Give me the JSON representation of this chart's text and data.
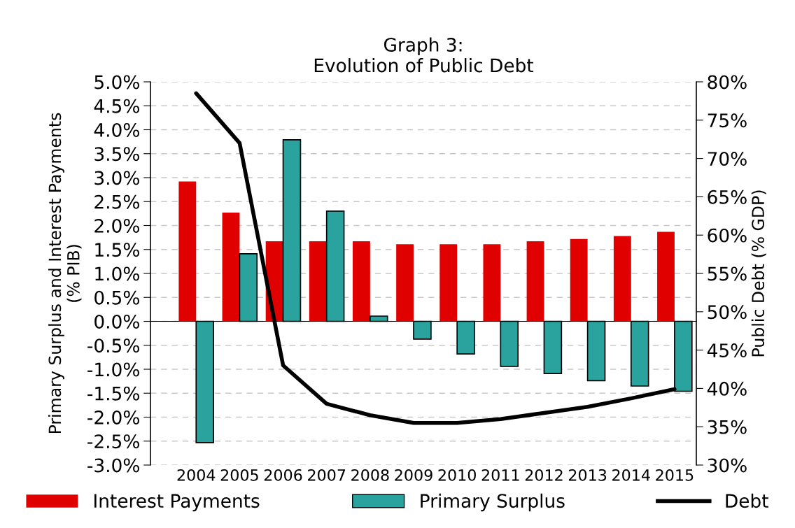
{
  "chart_data": {
    "type": "bar",
    "title": "Graph 3:\nEvolution of Public Debt",
    "ylabel": "Primary Surplus and Interest Payments\n(% PIB)",
    "y2label": "Public Debt (% GDP)",
    "categories": [
      "2004",
      "2005",
      "2006",
      "2007",
      "2008",
      "2009",
      "2010",
      "2011",
      "2012",
      "2013",
      "2014",
      "2015"
    ],
    "series": [
      {
        "name": "Interest Payments",
        "color": "#e00000",
        "values": [
          2.92,
          2.27,
          1.67,
          1.67,
          1.67,
          1.61,
          1.61,
          1.61,
          1.67,
          1.72,
          1.78,
          1.87
        ]
      },
      {
        "name": "Primary Surplus",
        "color": "#2aa39e",
        "values": [
          -2.53,
          1.41,
          3.79,
          2.3,
          0.11,
          -0.37,
          -0.68,
          -0.94,
          -1.09,
          -1.24,
          -1.35,
          -1.46
        ]
      },
      {
        "name": "Debt",
        "type": "line",
        "axis": "y2",
        "color": "#000000",
        "values": [
          78.5,
          72.0,
          43.0,
          38.0,
          36.5,
          35.5,
          35.5,
          36.0,
          36.8,
          37.6,
          38.7,
          39.9
        ]
      }
    ],
    "ylim": [
      -3,
      5
    ],
    "yticks": [
      {
        "value": -3,
        "label": "-3.0%"
      },
      {
        "value": -2.5,
        "label": "-2.5%"
      },
      {
        "value": -2,
        "label": "-2.0%"
      },
      {
        "value": -1.5,
        "label": "-1.5%"
      },
      {
        "value": -1,
        "label": "-1.0%"
      },
      {
        "value": -0.5,
        "label": "-0.5%"
      },
      {
        "value": 0,
        "label": "0.0%"
      },
      {
        "value": 0.5,
        "label": "0.5%"
      },
      {
        "value": 1,
        "label": "1.0%"
      },
      {
        "value": 1.5,
        "label": "1.5%"
      },
      {
        "value": 2,
        "label": "2.0%"
      },
      {
        "value": 2.5,
        "label": "2.5%"
      },
      {
        "value": 3,
        "label": "3.0%"
      },
      {
        "value": 3.5,
        "label": "3.5%"
      },
      {
        "value": 4,
        "label": "4.0%"
      },
      {
        "value": 4.5,
        "label": "4.5%"
      },
      {
        "value": 5,
        "label": "5.0%"
      }
    ],
    "y2lim": [
      30,
      80
    ],
    "y2ticks": [
      {
        "value": 30,
        "label": "30%"
      },
      {
        "value": 35,
        "label": "35%"
      },
      {
        "value": 40,
        "label": "40%"
      },
      {
        "value": 45,
        "label": "45%"
      },
      {
        "value": 50,
        "label": "50%"
      },
      {
        "value": 55,
        "label": "55%"
      },
      {
        "value": 60,
        "label": "60%"
      },
      {
        "value": 65,
        "label": "65%"
      },
      {
        "value": 70,
        "label": "70%"
      },
      {
        "value": 75,
        "label": "75%"
      },
      {
        "value": 80,
        "label": "80%"
      }
    ],
    "grid": "y",
    "legend": "bottom",
    "line_style": "solid",
    "marker": "none"
  }
}
